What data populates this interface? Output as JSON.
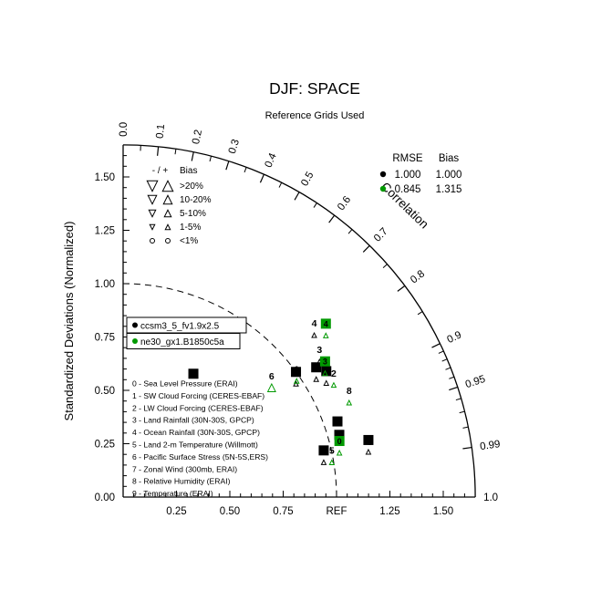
{
  "chart_data": {
    "type": "taylor",
    "title": "DJF: SPACE",
    "subtitle": "Reference Grids Used",
    "ylabel": "Standardized Deviations (Normalized)",
    "correlation_label": "Correlation",
    "ref_std": 1.0,
    "radial_axis": {
      "max": 1.65,
      "minor_step": 0.05,
      "major_step": 0.25,
      "x_labels": [
        "0.25",
        "0.50",
        "0.75",
        "REF",
        "1.25",
        "1.50"
      ],
      "y_labels": [
        "0.00",
        "0.25",
        "0.50",
        "0.75",
        "1.00",
        "1.25",
        "1.50"
      ]
    },
    "correlation_axis": {
      "labels": [
        {
          "value": 0.0,
          "label": "0.0"
        },
        {
          "value": 0.1,
          "label": "0.1"
        },
        {
          "value": 0.2,
          "label": "0.2"
        },
        {
          "value": 0.3,
          "label": "0.3"
        },
        {
          "value": 0.4,
          "label": "0.4"
        },
        {
          "value": 0.5,
          "label": "0.5"
        },
        {
          "value": 0.6,
          "label": "0.6"
        },
        {
          "value": 0.7,
          "label": "0.7"
        },
        {
          "value": 0.8,
          "label": "0.8"
        },
        {
          "value": 0.9,
          "label": "0.9"
        },
        {
          "value": 0.95,
          "label": "0.95"
        },
        {
          "value": 0.99,
          "label": "0.99"
        },
        {
          "value": 1.0,
          "label": "1.0"
        }
      ],
      "major_ticks": [
        0.1,
        0.2,
        0.3,
        0.4,
        0.5,
        0.6,
        0.7,
        0.8,
        0.9,
        0.95,
        0.99
      ],
      "minor_ticks": [
        0.05,
        0.15,
        0.25,
        0.35,
        0.45,
        0.55,
        0.65,
        0.75,
        0.85,
        0.91,
        0.92,
        0.93,
        0.94,
        0.96,
        0.97,
        0.98
      ]
    },
    "bias_legend": {
      "header_sign": "- / +",
      "header": "Bias",
      "rows": [
        ">20%",
        "10-20%",
        "5-10%",
        "1-5%",
        "<1%"
      ]
    },
    "stats_legend": {
      "headers": [
        "RMSE",
        "Bias"
      ],
      "rows": [
        {
          "color": "#000000",
          "rmse": "1.000",
          "bias": "1.000"
        },
        {
          "color": "#009900",
          "rmse": "0.845",
          "bias": "1.315"
        }
      ]
    },
    "series": [
      {
        "name": "ccsm3_5_fv1.9x2.5",
        "color": "#000000",
        "points": [
          {
            "id": "0",
            "corr": 0.961,
            "sd": 1.054,
            "boxed": true,
            "bias": null
          },
          {
            "id": "1",
            "corr": 0.81,
            "sd": 1.0,
            "boxed": true,
            "bias": {
              "sign": "+",
              "size": "1-5%"
            }
          },
          {
            "id": "2",
            "corr": 0.83,
            "sd": 1.09,
            "boxed": true,
            "bias": {
              "sign": "+",
              "size": "1-5%"
            }
          },
          {
            "id": "3",
            "corr": 0.8,
            "sd": 1.15,
            "boxed": false,
            "bias": {
              "sign": "+",
              "size": "1-5%"
            }
          },
          {
            "id": "4",
            "corr": 0.74,
            "sd": 1.21,
            "boxed": false,
            "bias": {
              "sign": "+",
              "size": "1-5%"
            }
          },
          {
            "id": "5",
            "corr": 0.974,
            "sd": 0.965,
            "boxed": true,
            "bias": {
              "sign": "+",
              "size": "1-5%"
            }
          },
          {
            "id": "6",
            "corr": 0.495,
            "sd": 0.665,
            "boxed": true,
            "bias": null
          },
          {
            "id": "7",
            "corr": 0.943,
            "sd": 1.065,
            "boxed": true,
            "bias": null
          },
          {
            "id": "8",
            "corr": 0.85,
            "sd": 1.12,
            "boxed": true,
            "bias": {
              "sign": "+",
              "size": "1-5%"
            }
          },
          {
            "id": "9",
            "corr": 0.974,
            "sd": 1.18,
            "boxed": true,
            "bias": {
              "sign": "+",
              "size": "1-5%"
            }
          }
        ]
      },
      {
        "name": "ne30_gx1.B1850c5a",
        "color": "#009900",
        "points": [
          {
            "id": "0",
            "corr": 0.968,
            "sd": 1.047,
            "boxed": true,
            "bias": {
              "sign": "+",
              "size": "1-5%"
            }
          },
          {
            "id": "1",
            "corr": 0.805,
            "sd": 1.01,
            "boxed": false,
            "bias": {
              "sign": "+",
              "size": "1-5%"
            }
          },
          {
            "id": "2",
            "corr": 0.862,
            "sd": 1.145,
            "boxed": false,
            "bias": {
              "sign": "+",
              "size": "1-5%"
            }
          },
          {
            "id": "3",
            "corr": 0.83,
            "sd": 1.14,
            "boxed": true,
            "bias": {
              "sign": "+",
              "size": "1-5%"
            }
          },
          {
            "id": "4",
            "corr": 0.76,
            "sd": 1.25,
            "boxed": true,
            "bias": {
              "sign": "+",
              "size": "1-5%"
            }
          },
          {
            "id": "5",
            "corr": 0.976,
            "sd": 1.002,
            "boxed": false,
            "bias": {
              "sign": "+",
              "size": "1-5%"
            }
          },
          {
            "id": "6",
            "corr": 0.775,
            "sd": 0.898,
            "boxed": false,
            "bias": {
              "sign": "+",
              "size": "10-20%"
            }
          },
          {
            "id": "7",
            "corr": 0.944,
            "sd": 1.075,
            "boxed": false,
            "bias": null
          },
          {
            "id": "8",
            "corr": 0.905,
            "sd": 1.17,
            "boxed": false,
            "bias": {
              "sign": "+",
              "size": "1-5%"
            }
          },
          {
            "id": "9",
            "corr": 0.976,
            "sd": 1.185,
            "boxed": false,
            "bias": null
          }
        ]
      }
    ],
    "variables": [
      "0 - Sea Level Pressure (ERAI)",
      "1 - SW Cloud Forcing (CERES-EBAF)",
      "2 - LW Cloud Forcing (CERES-EBAF)",
      "3 - Land Rainfall (30N-30S, GPCP)",
      "4 - Ocean Rainfall (30N-30S, GPCP)",
      "5 - Land 2-m Temperature (Willmott)",
      "6 - Pacific Surface Stress (5N-5S,ERS)",
      "7 - Zonal Wind (300mb, ERAI)",
      "8 - Relative Humidity (ERAI)",
      "9 - Temperature (ERAI)"
    ]
  }
}
